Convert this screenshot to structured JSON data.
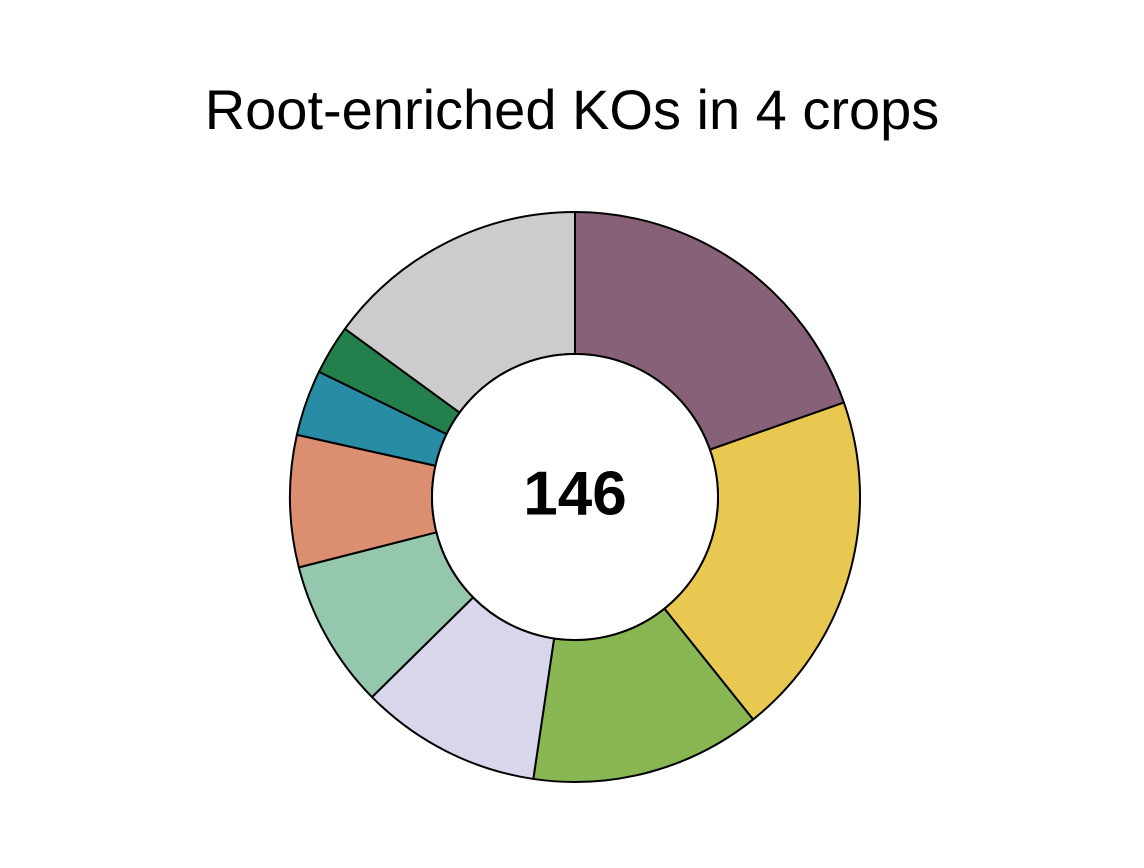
{
  "chart_data": {
    "type": "pie",
    "subtype": "donut",
    "title": "Root-enriched KOs in 4 crops",
    "center_label": "146",
    "categories": [
      "",
      "",
      "",
      "",
      "",
      "",
      "",
      "",
      ""
    ],
    "values": [
      21,
      21,
      14,
      11,
      9,
      8,
      4,
      3,
      16
    ],
    "colors": [
      "#866177",
      "#E9C852",
      "#88B653",
      "#D8D6EA",
      "#95C7AE",
      "#DB8E70",
      "#288CA5",
      "#23804C",
      "#CCCCCC"
    ],
    "start": "12 o'clock",
    "direction": "clockwise",
    "legend": "none"
  }
}
